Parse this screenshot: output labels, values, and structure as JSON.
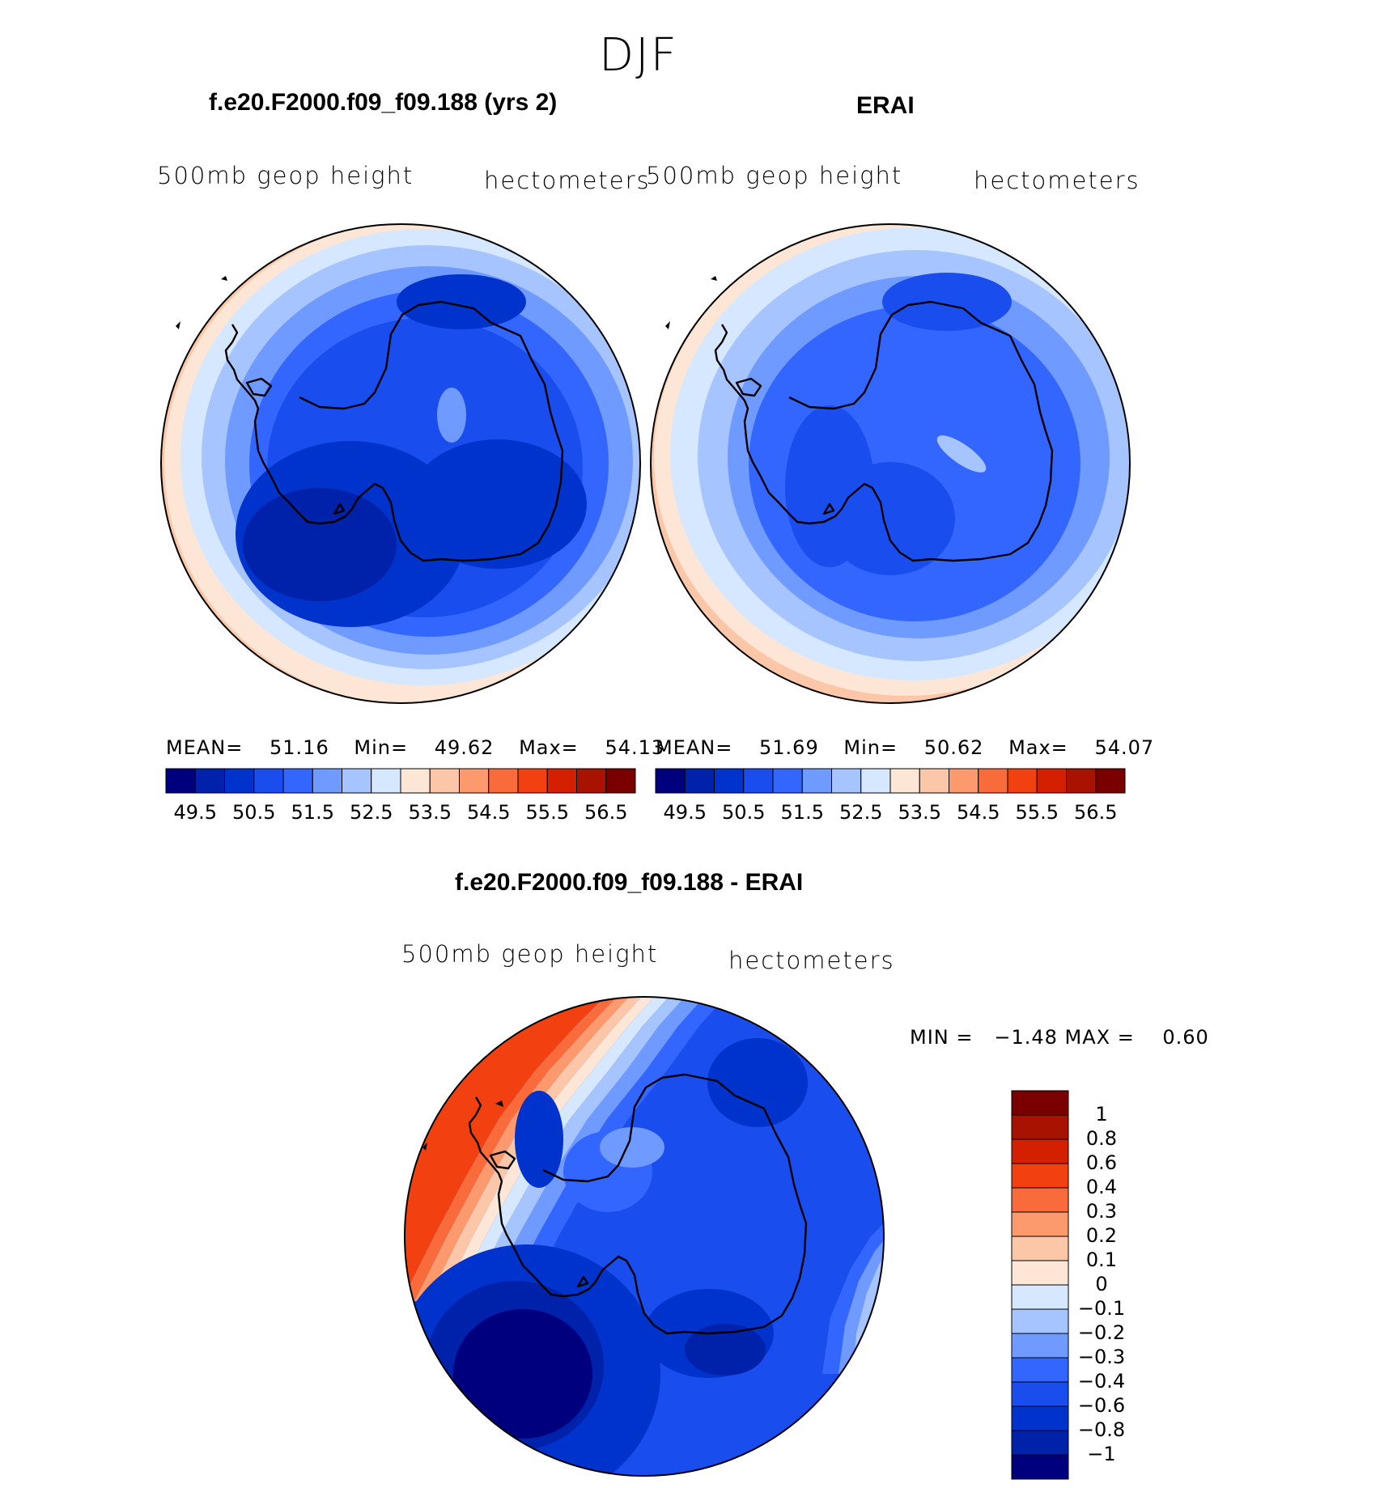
{
  "season": "DJF",
  "palette": [
    "#00007f",
    "#0022aa",
    "#0033cc",
    "#1a4dee",
    "#3366ff",
    "#6f9aff",
    "#a6c4ff",
    "#d6e8ff",
    "#fde6d6",
    "#fcc6a8",
    "#fc9a6e",
    "#f96b3a",
    "#f24010",
    "#d41f00",
    "#a81200",
    "#7a0000"
  ],
  "panels": [
    {
      "title": "f.e20.F2000.f09_f09.188 (yrs 2)",
      "variable": "500mb geop height",
      "units": "hectometers",
      "stats": {
        "mean_label": "MEAN=",
        "mean": "51.16",
        "min_label": "Min=",
        "min": "49.62",
        "max_label": "Max=",
        "max": "54.13"
      },
      "colorbar_ticks": [
        "49.5",
        "50.5",
        "51.5",
        "52.5",
        "53.5",
        "54.5",
        "55.5",
        "56.5"
      ]
    },
    {
      "title": "ERAI",
      "variable": "500mb geop height",
      "units": "hectometers",
      "stats": {
        "mean_label": "MEAN=",
        "mean": "51.69",
        "min_label": "Min=",
        "min": "50.62",
        "max_label": "Max=",
        "max": "54.07"
      },
      "colorbar_ticks": [
        "49.5",
        "50.5",
        "51.5",
        "52.5",
        "53.5",
        "54.5",
        "55.5",
        "56.5"
      ]
    }
  ],
  "diff": {
    "title": "f.e20.F2000.f09_f09.188 - ERAI",
    "variable": "500mb geop height",
    "units": "hectometers",
    "minmax": "MIN =   −1.48 MAX =    0.60",
    "colorbar_labels": [
      "1",
      "0.8",
      "0.6",
      "0.4",
      "0.3",
      "0.2",
      "0.1",
      "0",
      "−0.1",
      "−0.2",
      "−0.3",
      "−0.4",
      "−0.6",
      "−0.8",
      "−1"
    ],
    "colorbar_colors": [
      "#7a0000",
      "#a81200",
      "#d41f00",
      "#f24010",
      "#f96b3a",
      "#fc9a6e",
      "#fcc6a8",
      "#fde6d6",
      "#d6e8ff",
      "#a6c4ff",
      "#6f9aff",
      "#3366ff",
      "#1a4dee",
      "#0033cc",
      "#0022aa",
      "#00007f"
    ]
  }
}
